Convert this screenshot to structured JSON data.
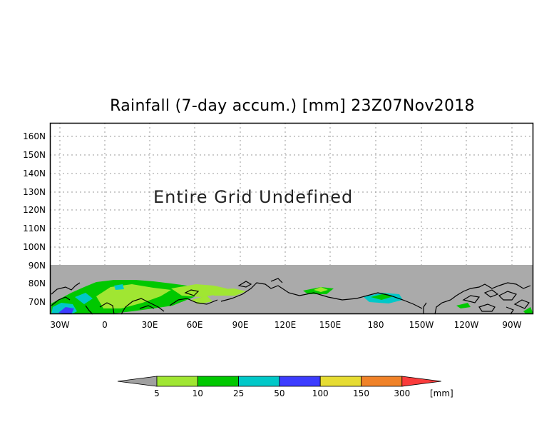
{
  "title": "Rainfall (7-day accum.) [mm] 23Z07Nov2018",
  "note": "Entire Grid Undefined",
  "map": {
    "lon_labels": [
      "30W",
      "0",
      "30E",
      "60E",
      "90E",
      "120E",
      "150E",
      "180",
      "150W",
      "120W",
      "90W"
    ],
    "lat_labels": [
      "160N",
      "150N",
      "140N",
      "130N",
      "120N",
      "110N",
      "100N",
      "90N",
      "80N",
      "70N"
    ],
    "grid_lines": true,
    "undefined_color": "#aaaaaa"
  },
  "legend": {
    "labels": [
      "5",
      "10",
      "25",
      "50",
      "100",
      "150",
      "300"
    ],
    "unit": "[mm]",
    "colors": [
      "#a0a0a0",
      "#a0e632",
      "#00c800",
      "#00c8c8",
      "#3c3cff",
      "#e6dc32",
      "#f08228",
      "#fa3c3c"
    ]
  }
}
